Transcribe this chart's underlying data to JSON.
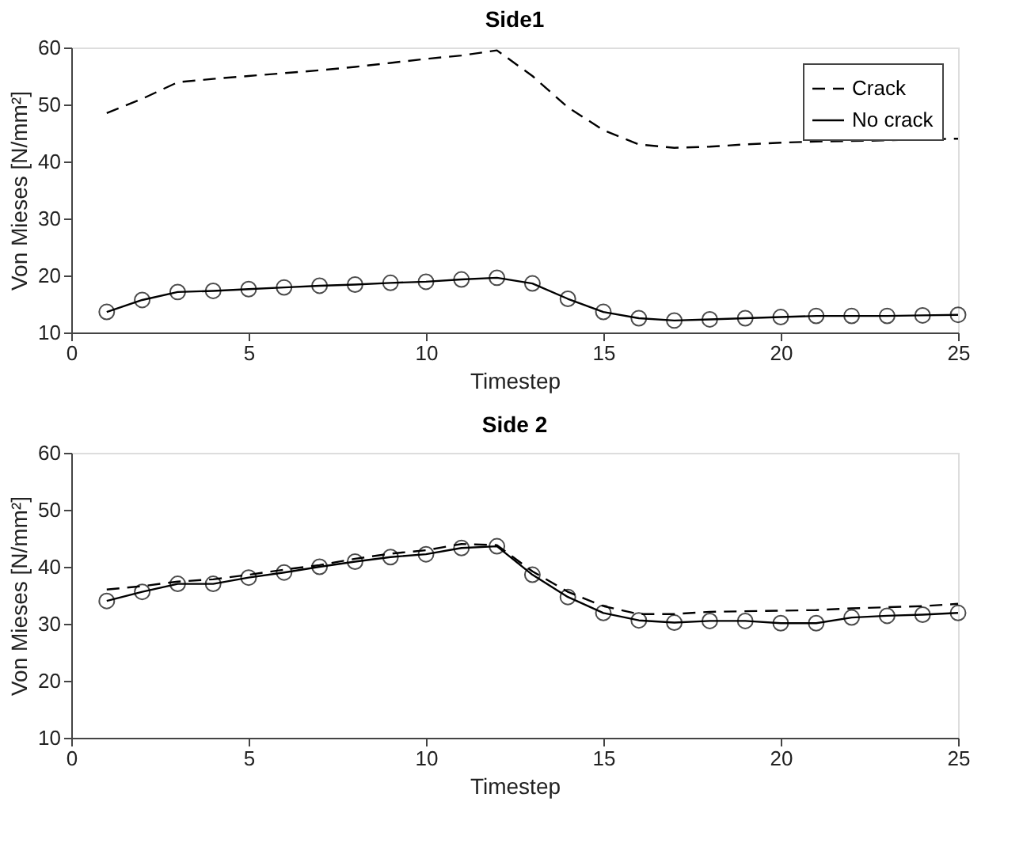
{
  "chart_data": [
    {
      "type": "line",
      "title": "Side1",
      "xlabel": "Timestep",
      "ylabel": "Von Mieses [N/mm²]",
      "x": [
        1,
        2,
        3,
        4,
        5,
        6,
        7,
        8,
        9,
        10,
        11,
        12,
        13,
        14,
        15,
        16,
        17,
        18,
        19,
        20,
        21,
        22,
        23,
        24,
        25
      ],
      "xlim": [
        0,
        25
      ],
      "xticks": [
        0,
        5,
        10,
        15,
        20,
        25
      ],
      "ylim": [
        10,
        60
      ],
      "yticks": [
        10,
        20,
        30,
        40,
        50,
        60
      ],
      "grid": false,
      "legend": "top right",
      "series": [
        {
          "name": "Crack",
          "color": "#000000",
          "line_style": "dashed",
          "marker": "none",
          "values": [
            48.5,
            51,
            53.9,
            54.5,
            55,
            55.5,
            56,
            56.6,
            57.3,
            58,
            58.6,
            59.5,
            55,
            49.5,
            45.5,
            43,
            42.4,
            42.6,
            43,
            43.3,
            43.5,
            43.6,
            43.7,
            43.9,
            44
          ]
        },
        {
          "name": "No crack",
          "color": "#000000",
          "line_style": "solid",
          "marker": "circle",
          "values": [
            13.6,
            15.7,
            17.1,
            17.3,
            17.6,
            17.9,
            18.2,
            18.4,
            18.7,
            18.9,
            19.3,
            19.6,
            18.6,
            15.9,
            13.6,
            12.5,
            12.1,
            12.3,
            12.5,
            12.7,
            12.9,
            12.9,
            12.9,
            13,
            13.1
          ]
        }
      ]
    },
    {
      "type": "line",
      "title": "Side 2",
      "xlabel": "Timestep",
      "ylabel": "Von Mieses [N/mm²]",
      "x": [
        1,
        2,
        3,
        4,
        5,
        6,
        7,
        8,
        9,
        10,
        11,
        12,
        13,
        14,
        15,
        16,
        17,
        18,
        19,
        20,
        21,
        22,
        23,
        24,
        25
      ],
      "xlim": [
        0,
        25
      ],
      "xticks": [
        0,
        5,
        10,
        15,
        20,
        25
      ],
      "ylim": [
        10,
        60
      ],
      "yticks": [
        10,
        20,
        30,
        40,
        50,
        60
      ],
      "grid": false,
      "legend": "top right",
      "series": [
        {
          "name": "Crack",
          "color": "#000000",
          "line_style": "dashed",
          "marker": "none",
          "values": [
            36,
            36.6,
            37.4,
            37.8,
            38.6,
            39.5,
            40.3,
            41.4,
            42.3,
            42.9,
            44,
            43.8,
            39.2,
            35.6,
            33.1,
            31.7,
            31.7,
            32.1,
            32.2,
            32.3,
            32.4,
            32.7,
            32.9,
            33.1,
            33.5
          ]
        },
        {
          "name": "No crack",
          "color": "#000000",
          "line_style": "solid",
          "marker": "circle",
          "values": [
            34,
            35.6,
            37,
            37,
            38.1,
            39,
            40,
            40.9,
            41.7,
            42.2,
            43.3,
            43.6,
            38.6,
            34.7,
            31.9,
            30.6,
            30.2,
            30.5,
            30.5,
            30.1,
            30.1,
            31.1,
            31.4,
            31.6,
            31.9
          ]
        }
      ]
    }
  ]
}
